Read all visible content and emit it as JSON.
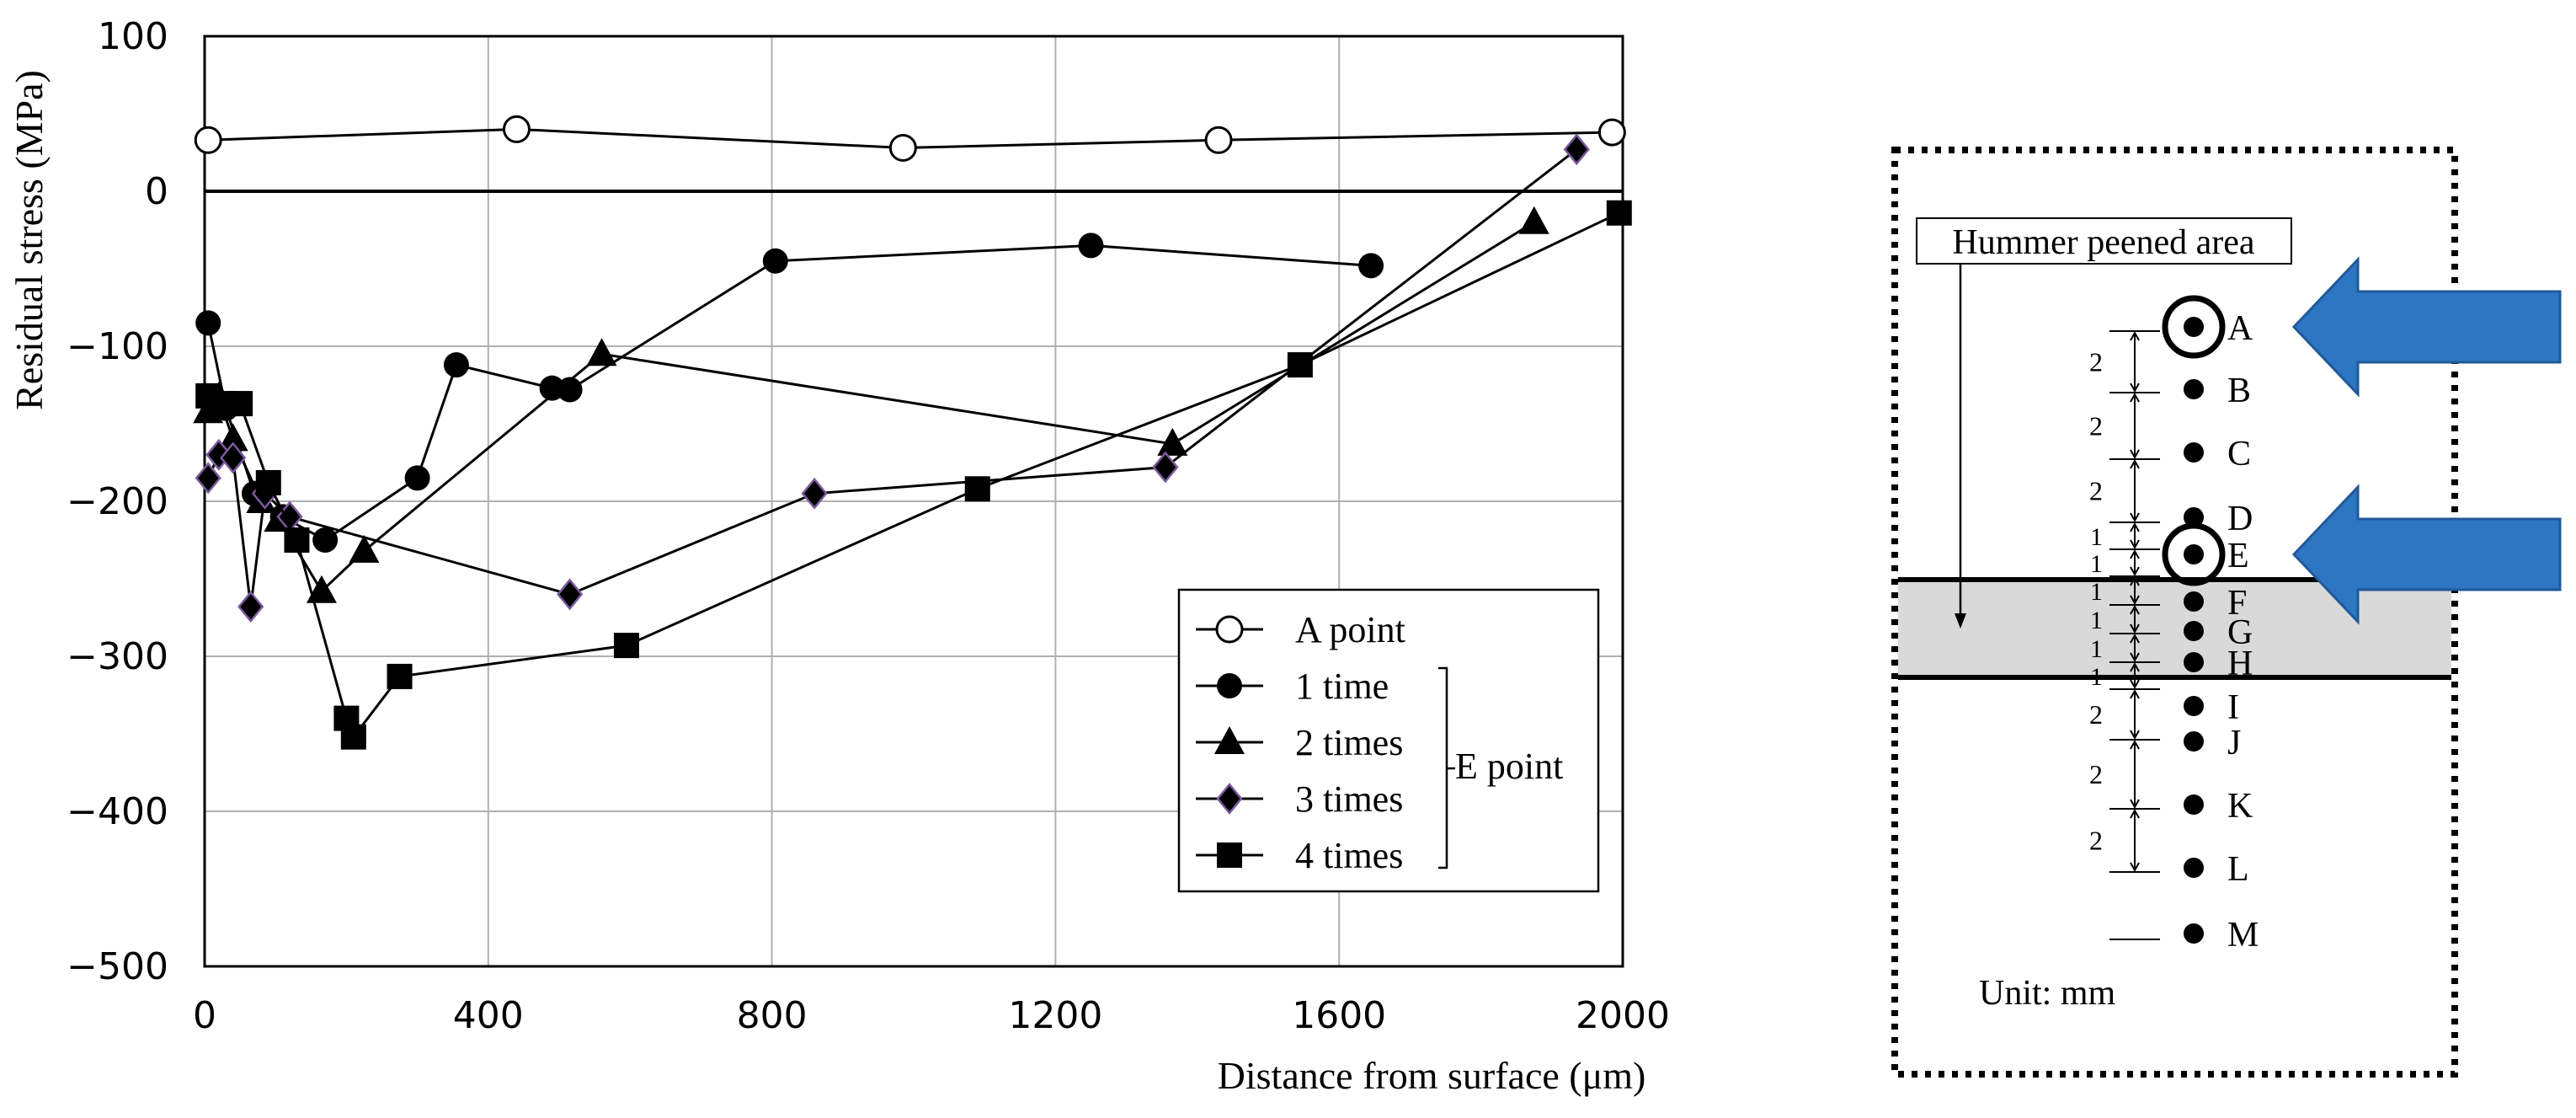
{
  "chart_data": {
    "type": "line",
    "xlabel": "Distance from surface (μm)",
    "ylabel": "Residual stress (MPa)",
    "xlim": [
      0,
      2000
    ],
    "ylim": [
      -500,
      100
    ],
    "xticks": [
      "0",
      "400",
      "800",
      "1200",
      "1600",
      "2000"
    ],
    "yticks": [
      "100",
      "0",
      "−100",
      "−200",
      "−300",
      "−400",
      "−500"
    ],
    "grid": true,
    "legend_position": "bottom-right",
    "legend_group_label": "E point",
    "series": [
      {
        "name": "A point",
        "marker": "circle-open",
        "x": [
          5,
          440,
          985,
          1430,
          1985
        ],
        "y": [
          33,
          40,
          28,
          33,
          38
        ]
      },
      {
        "name": "1 time",
        "marker": "circle",
        "x": [
          5,
          30,
          70,
          110,
          170,
          300,
          355,
          490,
          515,
          805,
          1250,
          1645
        ],
        "y": [
          -85,
          -140,
          -195,
          -210,
          -225,
          -185,
          -112,
          -127,
          -128,
          -45,
          -35,
          -48
        ]
      },
      {
        "name": "2 times",
        "marker": "triangle",
        "x": [
          5,
          20,
          40,
          80,
          105,
          165,
          225,
          560,
          1365,
          1875
        ],
        "y": [
          -142,
          -133,
          -160,
          -200,
          -212,
          -258,
          -232,
          -105,
          -163,
          -20
        ]
      },
      {
        "name": "3 times",
        "marker": "diamond",
        "x": [
          5,
          20,
          40,
          65,
          85,
          120,
          515,
          860,
          1355,
          1935
        ],
        "y": [
          -185,
          -170,
          -172,
          -268,
          -195,
          -210,
          -260,
          -195,
          -178,
          27
        ]
      },
      {
        "name": "4 times",
        "marker": "square",
        "x": [
          5,
          30,
          50,
          90,
          130,
          200,
          210,
          275,
          595,
          1090,
          1545,
          1995
        ],
        "y": [
          -132,
          -137,
          -137,
          -188,
          -225,
          -340,
          -352,
          -313,
          -293,
          -192,
          -112,
          -14
        ]
      }
    ]
  },
  "diagram": {
    "area_label": "Hummer peened area",
    "unit_label": "Unit: mm",
    "points": [
      "A",
      "B",
      "C",
      "D",
      "E",
      "F",
      "G",
      "H",
      "I",
      "J",
      "K",
      "L",
      "M"
    ],
    "spacings": [
      "2",
      "2",
      "2",
      "1",
      "1",
      "1",
      "1",
      "1",
      "1",
      "2",
      "2",
      "2"
    ],
    "highlighted_points": [
      "A",
      "E"
    ],
    "arrow_color": "#2E75C3",
    "shade_color": "#D9D9D9"
  }
}
